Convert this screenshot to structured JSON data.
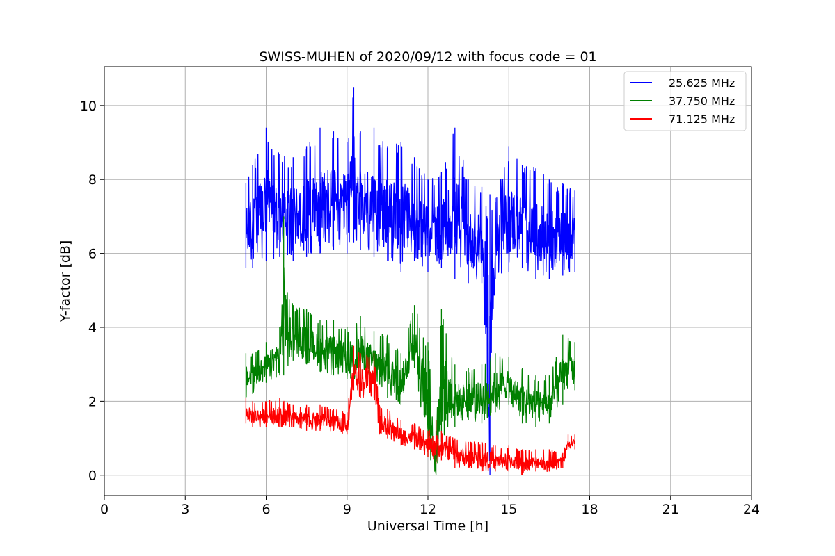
{
  "chart_data": {
    "type": "line",
    "title": "SWISS-MUHEN of 2020/09/12 with focus code = 01",
    "xlabel": "Universal Time [h]",
    "ylabel": "Y-factor [dB]",
    "xlim": [
      0,
      24
    ],
    "ylim": [
      -0.55,
      11.05
    ],
    "xticks": [
      0,
      3,
      6,
      9,
      12,
      15,
      18,
      21,
      24
    ],
    "yticks": [
      0,
      2,
      4,
      6,
      8,
      10
    ],
    "grid": true,
    "legend_position": "top-right",
    "series": [
      {
        "name": "25.625 MHz",
        "color": "#0000ff",
        "x": [
          5.25,
          5.5,
          6.0,
          6.5,
          7.0,
          7.5,
          8.0,
          8.5,
          9.0,
          9.25,
          9.5,
          10.0,
          10.5,
          11.0,
          11.5,
          12.0,
          12.5,
          13.0,
          13.5,
          14.0,
          14.3,
          14.5,
          15.0,
          15.5,
          16.0,
          16.5,
          17.0,
          17.45
        ],
        "low": [
          5.6,
          5.6,
          5.8,
          5.9,
          5.8,
          5.9,
          6.0,
          6.1,
          6.0,
          6.3,
          6.1,
          5.9,
          5.8,
          5.5,
          5.8,
          5.5,
          5.6,
          5.3,
          5.2,
          5.2,
          0.0,
          5.3,
          5.5,
          5.6,
          5.3,
          5.3,
          5.4,
          5.5
        ],
        "high": [
          7.9,
          8.4,
          9.4,
          8.7,
          8.6,
          8.9,
          9.4,
          9.3,
          9.0,
          10.5,
          9.3,
          9.4,
          8.9,
          9.0,
          8.6,
          8.0,
          8.2,
          9.4,
          8.0,
          7.8,
          7.6,
          7.5,
          8.9,
          8.4,
          8.3,
          8.0,
          7.9,
          7.7
        ]
      },
      {
        "name": "37.750 MHz",
        "color": "#008000",
        "x": [
          5.25,
          5.5,
          6.0,
          6.5,
          6.65,
          7.0,
          7.5,
          8.0,
          8.5,
          9.0,
          9.5,
          10.0,
          10.5,
          11.0,
          11.5,
          12.0,
          12.3,
          12.5,
          13.0,
          13.5,
          14.0,
          14.5,
          15.0,
          15.5,
          16.0,
          16.5,
          17.0,
          17.45
        ],
        "low": [
          2.1,
          2.2,
          2.5,
          2.7,
          2.7,
          3.1,
          3.0,
          2.8,
          2.7,
          2.6,
          2.6,
          2.5,
          2.1,
          1.9,
          2.9,
          0.5,
          0.0,
          0.9,
          1.3,
          1.5,
          1.4,
          1.7,
          1.9,
          1.4,
          1.3,
          1.4,
          1.9,
          2.3
        ],
        "high": [
          3.3,
          3.3,
          3.6,
          4.0,
          7.0,
          4.6,
          4.5,
          4.2,
          4.2,
          4.0,
          4.3,
          3.9,
          3.8,
          3.3,
          4.6,
          3.6,
          1.2,
          4.5,
          3.0,
          2.9,
          3.0,
          3.3,
          3.2,
          2.9,
          2.7,
          2.7,
          3.8,
          3.6
        ]
      },
      {
        "name": "71.125 MHz",
        "color": "#ff0000",
        "x": [
          5.25,
          5.5,
          6.0,
          6.5,
          7.0,
          7.5,
          8.0,
          8.5,
          9.0,
          9.25,
          9.5,
          10.0,
          10.2,
          10.5,
          11.0,
          11.5,
          12.0,
          12.3,
          12.5,
          13.0,
          13.5,
          14.0,
          14.5,
          15.0,
          15.5,
          16.0,
          16.5,
          17.0,
          17.2,
          17.45
        ],
        "low": [
          1.4,
          1.3,
          1.3,
          1.3,
          1.3,
          1.2,
          1.2,
          1.2,
          1.1,
          2.3,
          2.1,
          2.1,
          1.1,
          1.0,
          0.8,
          0.7,
          0.5,
          0.3,
          0.4,
          0.2,
          0.2,
          0.1,
          0.1,
          0.1,
          0.0,
          0.1,
          0.1,
          0.2,
          0.7,
          0.7
        ],
        "high": [
          2.1,
          2.0,
          2.0,
          2.1,
          1.9,
          1.9,
          1.9,
          1.8,
          1.7,
          3.5,
          3.3,
          3.3,
          1.9,
          1.8,
          1.5,
          1.4,
          1.2,
          1.5,
          1.2,
          1.0,
          0.9,
          0.9,
          0.8,
          0.8,
          0.7,
          0.7,
          0.7,
          0.6,
          1.1,
          1.1
        ]
      }
    ]
  }
}
